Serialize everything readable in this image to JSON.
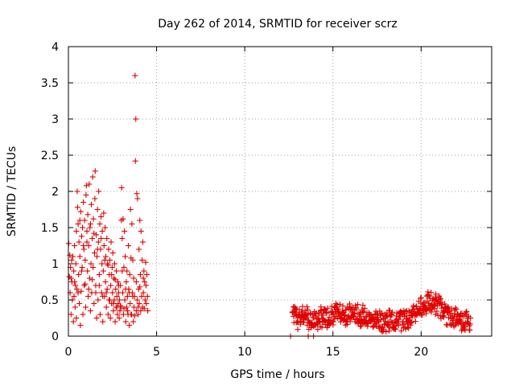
{
  "chart_data": {
    "type": "scatter",
    "title": "Day 262 of 2014, SRMTID for receiver scrz",
    "xlabel": "GPS time / hours",
    "ylabel": "SRMTID / TECUs",
    "xlim": [
      0,
      24
    ],
    "ylim": [
      0,
      4
    ],
    "xticks": [
      0,
      5,
      10,
      15,
      20
    ],
    "yticks": [
      0,
      0.5,
      1,
      1.5,
      2,
      2.5,
      3,
      3.5,
      4
    ],
    "xtick_labels": [
      "0",
      "5",
      "10",
      "15",
      "20"
    ],
    "ytick_labels": [
      "0",
      "0.5",
      "1",
      "1.5",
      "2",
      "2.5",
      "3",
      "3.5",
      "4"
    ],
    "grid": true,
    "marker": "+",
    "color": "#e00000",
    "series": [
      {
        "name": "SRMTID",
        "points": [
          [
            0.02,
            1.28
          ],
          [
            0.05,
            0.82
          ],
          [
            0.08,
            1.12
          ],
          [
            0.1,
            0.6
          ],
          [
            0.12,
            0.95
          ],
          [
            0.15,
            0.3
          ],
          [
            0.18,
            1.05
          ],
          [
            0.2,
            0.75
          ],
          [
            0.22,
            0.5
          ],
          [
            0.25,
            1.1
          ],
          [
            0.28,
            0.2
          ],
          [
            0.3,
            0.9
          ],
          [
            0.32,
            0.55
          ],
          [
            0.35,
            1.25
          ],
          [
            0.38,
            0.4
          ],
          [
            0.4,
            0.7
          ],
          [
            0.42,
            1.0
          ],
          [
            0.45,
            0.25
          ],
          [
            0.48,
            0.65
          ],
          [
            0.5,
            2.0
          ],
          [
            0.52,
            1.78
          ],
          [
            0.55,
            1.55
          ],
          [
            0.58,
            0.85
          ],
          [
            0.6,
            1.3
          ],
          [
            0.62,
            0.45
          ],
          [
            0.65,
            1.1
          ],
          [
            0.68,
            0.15
          ],
          [
            0.7,
            1.72
          ],
          [
            0.72,
            0.62
          ],
          [
            0.75,
            1.38
          ],
          [
            0.78,
            0.95
          ],
          [
            0.8,
            1.5
          ],
          [
            0.82,
            0.3
          ],
          [
            0.85,
            1.85
          ],
          [
            0.88,
            1.2
          ],
          [
            0.9,
            0.7
          ],
          [
            0.92,
            1.6
          ],
          [
            0.95,
            1.05
          ],
          [
            0.98,
            0.4
          ],
          [
            1.0,
            1.95
          ],
          [
            1.02,
            2.08
          ],
          [
            1.05,
            1.45
          ],
          [
            1.08,
            0.9
          ],
          [
            1.1,
            1.68
          ],
          [
            1.12,
            0.55
          ],
          [
            1.15,
            1.25
          ],
          [
            1.18,
            2.1
          ],
          [
            1.2,
            0.8
          ],
          [
            1.22,
            1.5
          ],
          [
            1.25,
            0.35
          ],
          [
            1.28,
            1.0
          ],
          [
            1.3,
            1.82
          ],
          [
            1.32,
            0.6
          ],
          [
            1.35,
            1.35
          ],
          [
            1.38,
            2.2
          ],
          [
            1.4,
            0.95
          ],
          [
            1.42,
            1.62
          ],
          [
            1.45,
            0.45
          ],
          [
            1.48,
            1.15
          ],
          [
            1.5,
            1.9
          ],
          [
            1.52,
            2.28
          ],
          [
            1.55,
            0.7
          ],
          [
            1.58,
            1.4
          ],
          [
            1.6,
            0.25
          ],
          [
            1.62,
            1.1
          ],
          [
            1.65,
            1.75
          ],
          [
            1.68,
            0.5
          ],
          [
            1.7,
            1.3
          ],
          [
            1.72,
            2.0
          ],
          [
            1.75,
            0.85
          ],
          [
            1.78,
            1.55
          ],
          [
            1.8,
            0.3
          ],
          [
            1.82,
            1.2
          ],
          [
            1.85,
            1.65
          ],
          [
            1.88,
            0.6
          ],
          [
            1.9,
            1.0
          ],
          [
            1.92,
            1.45
          ],
          [
            1.95,
            0.2
          ],
          [
            1.98,
            0.9
          ],
          [
            2.0,
            1.7
          ],
          [
            2.02,
            1.25
          ],
          [
            2.05,
            0.55
          ],
          [
            2.08,
            1.5
          ],
          [
            2.1,
            0.75
          ],
          [
            2.12,
            1.1
          ],
          [
            2.15,
            0.4
          ],
          [
            2.18,
            1.35
          ],
          [
            2.2,
            0.65
          ],
          [
            2.22,
            1.0
          ],
          [
            2.25,
            0.3
          ],
          [
            2.28,
            1.2
          ],
          [
            2.3,
            0.5
          ],
          [
            2.32,
            0.85
          ],
          [
            2.35,
            1.05
          ],
          [
            2.38,
            0.25
          ],
          [
            2.4,
            0.7
          ],
          [
            2.42,
            1.3
          ],
          [
            2.45,
            0.45
          ],
          [
            2.48,
            0.95
          ],
          [
            2.5,
            0.6
          ],
          [
            2.52,
            1.15
          ],
          [
            2.55,
            0.35
          ],
          [
            2.58,
            0.8
          ],
          [
            2.6,
            0.5
          ],
          [
            2.62,
            1.0
          ],
          [
            2.65,
            0.2
          ],
          [
            2.68,
            0.65
          ],
          [
            2.7,
            0.4
          ],
          [
            2.72,
            0.9
          ],
          [
            2.75,
            0.55
          ],
          [
            2.78,
            0.3
          ],
          [
            2.8,
            0.75
          ],
          [
            2.82,
            0.45
          ],
          [
            2.85,
            0.6
          ],
          [
            2.88,
            0.25
          ],
          [
            2.9,
            0.5
          ],
          [
            2.92,
            0.35
          ],
          [
            2.95,
            0.7
          ],
          [
            2.98,
            0.4
          ],
          [
            3.0,
            1.6
          ],
          [
            3.02,
            2.05
          ],
          [
            3.05,
            1.35
          ],
          [
            3.08,
            0.6
          ],
          [
            3.1,
            1.62
          ],
          [
            3.12,
            0.3
          ],
          [
            3.15,
            0.95
          ],
          [
            3.18,
            1.45
          ],
          [
            3.2,
            0.5
          ],
          [
            3.22,
            1.1
          ],
          [
            3.25,
            0.2
          ],
          [
            3.28,
            0.75
          ],
          [
            3.3,
            0.4
          ],
          [
            3.32,
            0.9
          ],
          [
            3.35,
            0.55
          ],
          [
            3.38,
            0.3
          ],
          [
            3.4,
            1.25
          ],
          [
            3.42,
            0.65
          ],
          [
            3.45,
            0.15
          ],
          [
            3.48,
            0.85
          ],
          [
            3.5,
            0.45
          ],
          [
            3.52,
            1.75
          ],
          [
            3.55,
            1.08
          ],
          [
            3.58,
            0.3
          ],
          [
            3.6,
            1.55
          ],
          [
            3.62,
            0.6
          ],
          [
            3.65,
            1.05
          ],
          [
            3.68,
            0.2
          ],
          [
            3.7,
            0.8
          ],
          [
            3.72,
            0.4
          ],
          [
            3.75,
            0.55
          ],
          [
            3.78,
            3.6
          ],
          [
            3.8,
            2.42
          ],
          [
            3.82,
            3.0
          ],
          [
            3.85,
            0.35
          ],
          [
            3.88,
            1.97
          ],
          [
            3.9,
            0.5
          ],
          [
            3.92,
            1.9
          ],
          [
            3.95,
            0.3
          ],
          [
            3.98,
            0.65
          ],
          [
            4.0,
            1.2
          ],
          [
            4.02,
            0.45
          ],
          [
            4.05,
            1.6
          ],
          [
            4.08,
            0.85
          ],
          [
            4.1,
            0.35
          ],
          [
            4.12,
            1.45
          ],
          [
            4.15,
            0.55
          ],
          [
            4.18,
            1.05
          ],
          [
            4.2,
            0.4
          ],
          [
            4.22,
            1.3
          ],
          [
            4.25,
            0.6
          ],
          [
            4.28,
            0.9
          ],
          [
            4.3,
            0.38
          ],
          [
            4.32,
            0.75
          ],
          [
            4.35,
            0.5
          ],
          [
            4.38,
            1.02
          ],
          [
            4.4,
            0.7
          ],
          [
            4.42,
            0.45
          ],
          [
            4.45,
            0.85
          ],
          [
            4.48,
            0.55
          ],
          [
            4.5,
            0.35
          ],
          [
            0.15,
            0.8
          ],
          [
            0.35,
            0.75
          ],
          [
            0.55,
            0.6
          ],
          [
            0.75,
            0.9
          ],
          [
            0.95,
            0.72
          ],
          [
            1.15,
            0.65
          ],
          [
            1.35,
            0.78
          ],
          [
            1.55,
            0.6
          ],
          [
            1.75,
            0.7
          ],
          [
            1.95,
            0.55
          ],
          [
            2.15,
            0.6
          ],
          [
            2.35,
            0.5
          ],
          [
            2.55,
            0.45
          ],
          [
            2.75,
            0.4
          ],
          [
            2.95,
            0.42
          ],
          [
            3.15,
            0.38
          ],
          [
            3.35,
            0.35
          ],
          [
            3.55,
            0.3
          ],
          [
            3.75,
            0.28
          ],
          [
            3.95,
            0.4
          ],
          [
            0.45,
            1.45
          ],
          [
            0.65,
            1.6
          ],
          [
            0.85,
            1.25
          ],
          [
            1.05,
            1.3
          ],
          [
            1.25,
            1.55
          ],
          [
            1.45,
            1.42
          ],
          [
            1.65,
            1.2
          ],
          [
            1.85,
            1.35
          ],
          [
            2.05,
            1.05
          ],
          [
            2.25,
            0.98
          ],
          [
            2.45,
            0.85
          ],
          [
            2.65,
            0.78
          ],
          [
            2.85,
            0.7
          ],
          [
            3.05,
            0.9
          ],
          [
            3.25,
            0.65
          ],
          [
            3.45,
            0.6
          ],
          [
            3.65,
            0.55
          ],
          [
            3.85,
            0.75
          ],
          [
            4.05,
            0.68
          ],
          [
            4.25,
            0.8
          ],
          [
            12.6,
            0.0
          ],
          [
            13.6,
            0.0
          ],
          [
            13.9,
            0.0
          ]
        ]
      }
    ]
  }
}
